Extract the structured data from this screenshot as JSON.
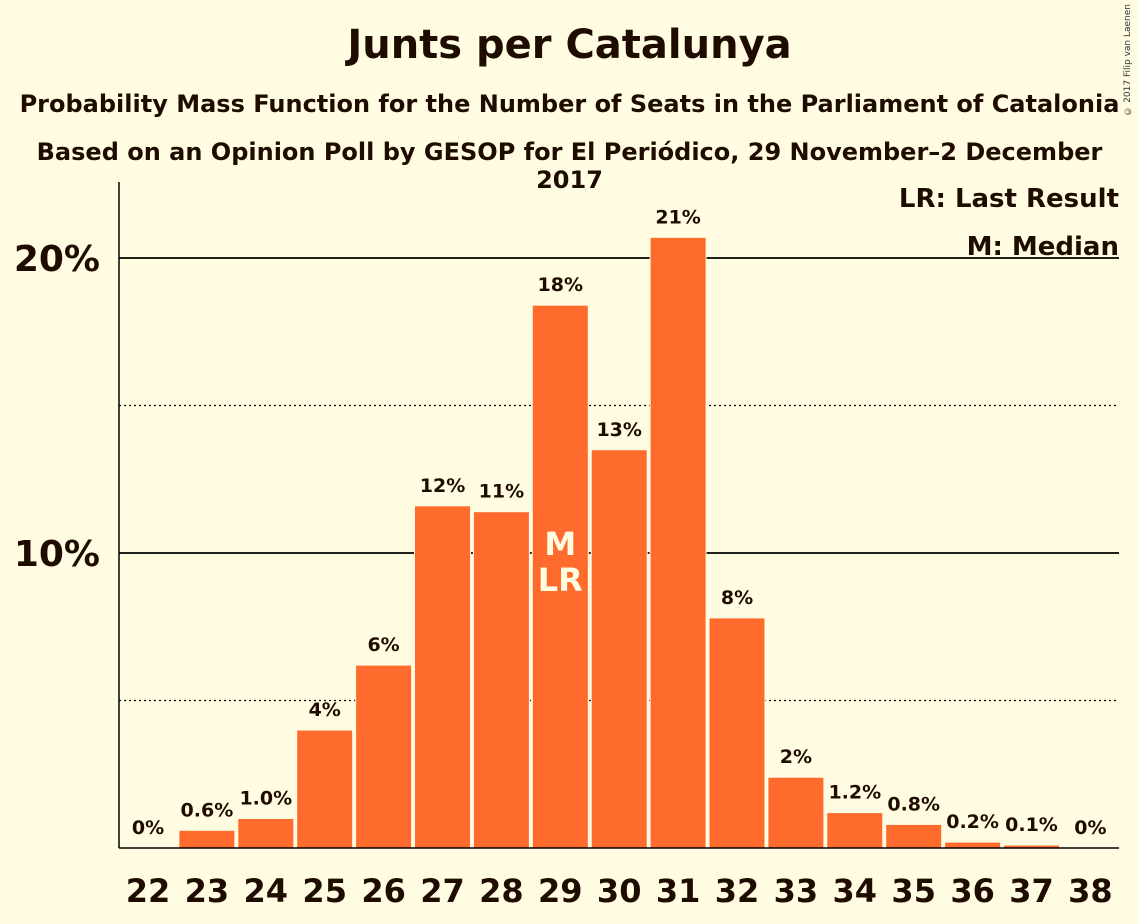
{
  "title": "Junts per Catalunya",
  "subtitle": "Probability Mass Function for the Number of Seats in the Parliament of Catalonia",
  "subtitle2": "Based on an Opinion Poll by GESOP for El Periódico, 29 November–2 December 2017",
  "copyright": "© 2017 Filip van Laenen",
  "legend": {
    "lr": "LR: Last Result",
    "m": "M: Median"
  },
  "colors": {
    "bar": "#FF6B2C",
    "background": "#FFFCE2",
    "text": "#1f0c00"
  },
  "chart_data": {
    "type": "bar",
    "categories": [
      "22",
      "23",
      "24",
      "25",
      "26",
      "27",
      "28",
      "29",
      "30",
      "31",
      "32",
      "33",
      "34",
      "35",
      "36",
      "37",
      "38"
    ],
    "values": [
      0,
      0.6,
      1.0,
      4,
      6.2,
      11.6,
      11.4,
      18.4,
      13.5,
      20.7,
      7.8,
      2.4,
      1.2,
      0.8,
      0.2,
      0.1,
      0
    ],
    "data_labels": [
      "0%",
      "0.6%",
      "1.0%",
      "4%",
      "6%",
      "12%",
      "11%",
      "18%",
      "13%",
      "21%",
      "8%",
      "2%",
      "1.2%",
      "0.8%",
      "0.2%",
      "0.1%",
      "0%"
    ],
    "y_ticks": [
      {
        "value": 10,
        "label": "10%"
      },
      {
        "value": 20,
        "label": "20%"
      }
    ],
    "y_minor_gridlines": [
      5,
      15
    ],
    "ylim": [
      0,
      22.5
    ],
    "markers": [
      {
        "category": "29",
        "labels": [
          "M",
          "LR"
        ]
      }
    ]
  }
}
